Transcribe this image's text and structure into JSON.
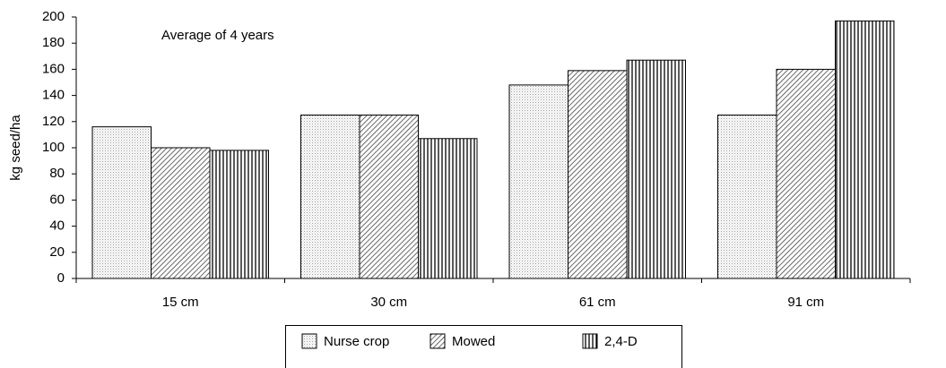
{
  "chart_data": {
    "type": "bar",
    "annotation": "Average of 4 years",
    "y_label": "kg seed/ha",
    "categories": [
      "15 cm",
      "30 cm",
      "61 cm",
      "91 cm"
    ],
    "series": [
      {
        "name": "Nurse crop",
        "pattern": "dots",
        "values": [
          116,
          125,
          148,
          125
        ]
      },
      {
        "name": "Mowed",
        "pattern": "diagonal",
        "values": [
          100,
          125,
          159,
          160
        ]
      },
      {
        "name": "2,4-D",
        "pattern": "vertical",
        "values": [
          98,
          107,
          167,
          197
        ]
      }
    ],
    "ylim": [
      0,
      200
    ],
    "yticks": [
      0,
      20,
      40,
      60,
      80,
      100,
      120,
      140,
      160,
      180,
      200
    ],
    "grid": false,
    "legend": "bottom"
  }
}
